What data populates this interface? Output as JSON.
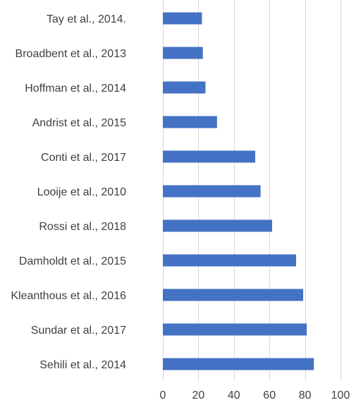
{
  "chart_data": {
    "type": "bar",
    "orientation": "horizontal",
    "categories": [
      "Tay et al., 2014.",
      "Broadbent et al., 2013",
      "Hoffman et al., 2014",
      "Andrist et al., 2015",
      "Conti et al., 2017",
      "Looije et al., 2010",
      "Rossi et al., 2018",
      "Damholdt et al., 2015",
      "Kleanthous et al., 2016",
      "Sundar et al., 2017",
      "Sehili et al., 2014"
    ],
    "values": [
      22,
      22.5,
      24,
      30.5,
      52,
      55,
      61.5,
      75,
      79,
      81,
      85
    ],
    "xlim": [
      0,
      100
    ],
    "xticks": [
      0,
      20,
      40,
      60,
      80,
      100
    ],
    "title": "",
    "xlabel": "",
    "ylabel": "",
    "grid": "vertical",
    "legend": "none",
    "bar_color": "#4472c4"
  }
}
